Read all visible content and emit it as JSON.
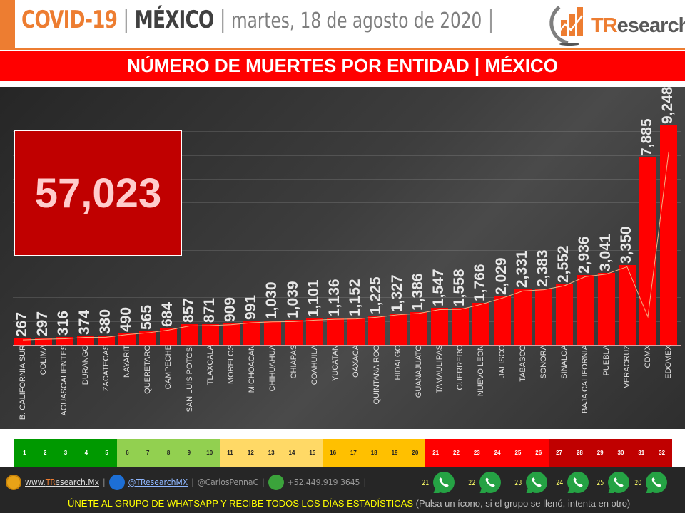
{
  "header": {
    "title_covid": "COVID-19",
    "separator": "|",
    "title_country": "MÉXICO",
    "date": "martes, 18 de agosto de 2020",
    "logo_text_tr": "TR",
    "logo_text_rest": "esearch"
  },
  "banner": {
    "title": "NÚMERO DE MUERTES POR ENTIDAD | MÉXICO"
  },
  "total": {
    "value": "57,023"
  },
  "chart_data": {
    "type": "bar",
    "title": "NÚMERO DE MUERTES POR ENTIDAD | MÉXICO",
    "xlabel": "",
    "ylabel": "",
    "ylim": [
      0,
      10500
    ],
    "grid": true,
    "gridline_step": 1000,
    "legend_position": "none",
    "trendline": true,
    "categories": [
      "B. CALIFORNIA SUR",
      "COLIMA",
      "AGUASCALIENTES",
      "DURANGO",
      "ZACATECAS",
      "NAYARIT",
      "QUERETARO",
      "CAMPECHE",
      "SAN LUIS POTOSI",
      "TLAXCALA",
      "MORELOS",
      "MICHOACAN",
      "CHIHUAHUA",
      "CHIAPAS",
      "COAHUILA",
      "YUCATAN",
      "OAXACA",
      "QUINTANA ROO",
      "HIDALGO",
      "GUANAJUATO",
      "TAMAULIPAS",
      "GUERRERO",
      "NUEVO LEON",
      "JALISCO",
      "TABASCO",
      "SONORA",
      "SINALOA",
      "BAJA CALIFORNIA",
      "PUEBLA",
      "VERACRUZ",
      "CDMX",
      "EDOMEX"
    ],
    "values": [
      267,
      297,
      316,
      374,
      380,
      490,
      565,
      684,
      857,
      871,
      909,
      991,
      1030,
      1039,
      1101,
      1136,
      1152,
      1225,
      1327,
      1386,
      1547,
      1558,
      1766,
      2029,
      2331,
      2383,
      2552,
      2936,
      3041,
      3350,
      7885,
      9248
    ],
    "labels": [
      "267",
      "297",
      "316",
      "374",
      "380",
      "490",
      "565",
      "684",
      "857",
      "871",
      "909",
      "991",
      "1,030",
      "1,039",
      "1,101",
      "1,136",
      "1,152",
      "1,225",
      "1,327",
      "1,386",
      "1,547",
      "1,558",
      "1,766",
      "2,029",
      "2,331",
      "2,383",
      "2,552",
      "2,936",
      "3,041",
      "3,350",
      "7,885",
      "9,248"
    ],
    "bar_color": "#FF0000",
    "total_annotation": "57,023"
  },
  "rank_legend": {
    "cells": [
      {
        "n": "1",
        "bg": "#009900",
        "fg": "#ffffff"
      },
      {
        "n": "2",
        "bg": "#009900",
        "fg": "#ffffff"
      },
      {
        "n": "3",
        "bg": "#009900",
        "fg": "#ffffff"
      },
      {
        "n": "4",
        "bg": "#009900",
        "fg": "#ffffff"
      },
      {
        "n": "5",
        "bg": "#009900",
        "fg": "#ffffff"
      },
      {
        "n": "6",
        "bg": "#92D050",
        "fg": "#222222"
      },
      {
        "n": "7",
        "bg": "#92D050",
        "fg": "#222222"
      },
      {
        "n": "8",
        "bg": "#92D050",
        "fg": "#222222"
      },
      {
        "n": "9",
        "bg": "#92D050",
        "fg": "#222222"
      },
      {
        "n": "10",
        "bg": "#92D050",
        "fg": "#222222"
      },
      {
        "n": "11",
        "bg": "#FFD966",
        "fg": "#222222"
      },
      {
        "n": "12",
        "bg": "#FFD966",
        "fg": "#222222"
      },
      {
        "n": "13",
        "bg": "#FFD966",
        "fg": "#222222"
      },
      {
        "n": "14",
        "bg": "#FFD966",
        "fg": "#222222"
      },
      {
        "n": "15",
        "bg": "#FFD966",
        "fg": "#222222"
      },
      {
        "n": "16",
        "bg": "#FFC000",
        "fg": "#222222"
      },
      {
        "n": "17",
        "bg": "#FFC000",
        "fg": "#222222"
      },
      {
        "n": "18",
        "bg": "#FFC000",
        "fg": "#222222"
      },
      {
        "n": "19",
        "bg": "#FFC000",
        "fg": "#222222"
      },
      {
        "n": "20",
        "bg": "#FFC000",
        "fg": "#222222"
      },
      {
        "n": "21",
        "bg": "#FF0000",
        "fg": "#ffffff"
      },
      {
        "n": "22",
        "bg": "#FF0000",
        "fg": "#ffffff"
      },
      {
        "n": "23",
        "bg": "#FF0000",
        "fg": "#ffffff"
      },
      {
        "n": "24",
        "bg": "#FF0000",
        "fg": "#ffffff"
      },
      {
        "n": "25",
        "bg": "#FF0000",
        "fg": "#ffffff"
      },
      {
        "n": "26",
        "bg": "#FF0000",
        "fg": "#ffffff"
      },
      {
        "n": "27",
        "bg": "#C00000",
        "fg": "#ffffff"
      },
      {
        "n": "28",
        "bg": "#C00000",
        "fg": "#ffffff"
      },
      {
        "n": "29",
        "bg": "#C00000",
        "fg": "#ffffff"
      },
      {
        "n": "30",
        "bg": "#C00000",
        "fg": "#ffffff"
      },
      {
        "n": "31",
        "bg": "#C00000",
        "fg": "#ffffff"
      },
      {
        "n": "32",
        "bg": "#C00000",
        "fg": "#ffffff"
      }
    ]
  },
  "footer": {
    "website_prefix": "www.",
    "website_tr": "TR",
    "website_rest": "esearch.Mx",
    "twitter": "@TResearchMX",
    "author": "@CarlosPennaC",
    "phone": "+52.449.919 3645",
    "pipe": "|",
    "whatsapp_groups": [
      "21",
      "22",
      "23",
      "24",
      "25",
      "20"
    ],
    "join_text": "ÚNETE AL GRUPO DE WHATSAPP Y RECIBE TODOS LOS DÍAS ESTADÍSTICAS",
    "join_hint": "(Pulsa un ícono, si el grupo se llenó, intenta en otro)"
  }
}
